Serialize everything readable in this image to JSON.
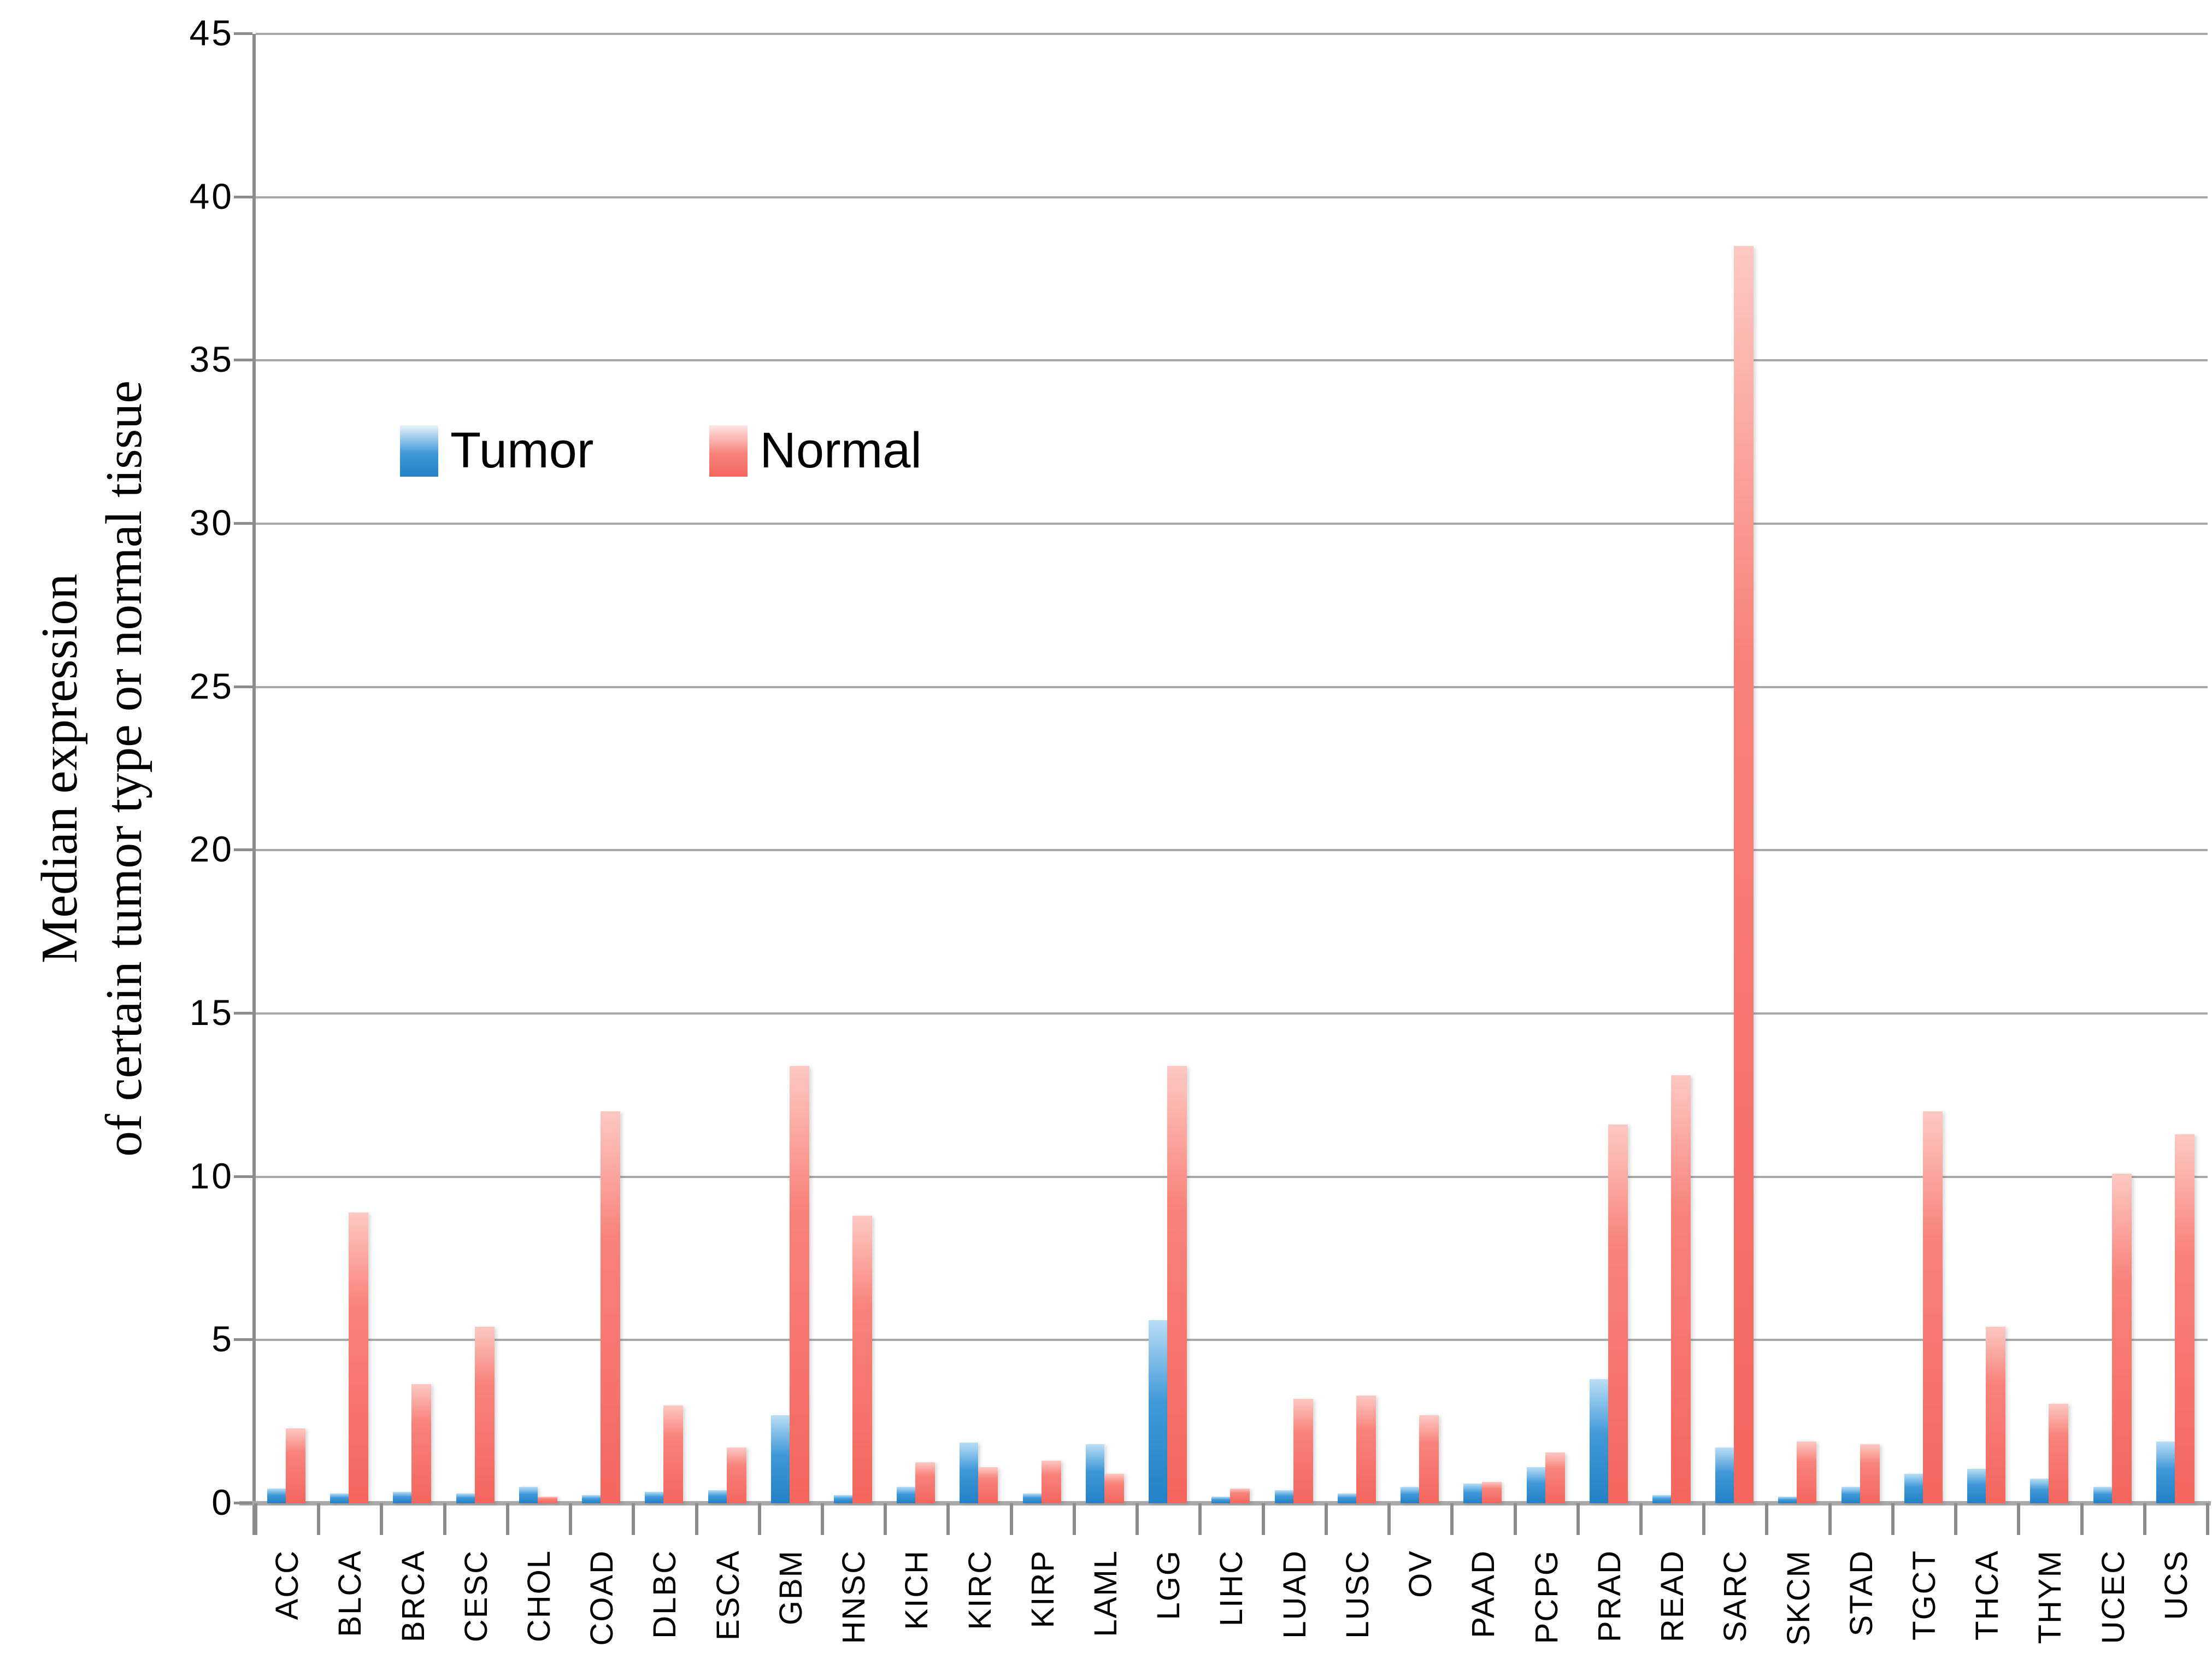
{
  "chart_data": {
    "type": "bar",
    "title": "",
    "ylabel_line1": "Median expression",
    "ylabel_line2": "of certain tumor type or normal tissue",
    "xlabel": "",
    "categories": [
      "ACC",
      "BLCA",
      "BRCA",
      "CESC",
      "CHOL",
      "COAD",
      "DLBC",
      "ESCA",
      "GBM",
      "HNSC",
      "KICH",
      "KIRC",
      "KIRP",
      "LAML",
      "LGG",
      "LIHC",
      "LUAD",
      "LUSC",
      "OV",
      "PAAD",
      "PCPG",
      "PRAD",
      "READ",
      "SARC",
      "SKCM",
      "STAD",
      "TGCT",
      "THCA",
      "THYM",
      "UCEC",
      "UCS"
    ],
    "series": [
      {
        "name": "Tumor",
        "values": [
          0.45,
          0.3,
          0.35,
          0.3,
          0.5,
          0.25,
          0.35,
          0.4,
          2.7,
          0.25,
          0.5,
          1.85,
          0.3,
          1.8,
          5.6,
          0.2,
          0.4,
          0.3,
          0.5,
          0.6,
          1.1,
          3.8,
          0.25,
          1.7,
          0.2,
          0.5,
          0.9,
          1.05,
          0.75,
          0.5,
          1.9
        ]
      },
      {
        "name": "Normal",
        "values": [
          2.3,
          8.9,
          3.65,
          5.4,
          0.2,
          12.0,
          3.0,
          1.7,
          13.4,
          8.8,
          1.25,
          1.1,
          1.3,
          0.9,
          13.4,
          0.45,
          3.2,
          3.3,
          2.7,
          0.65,
          1.55,
          11.6,
          13.1,
          38.5,
          1.9,
          1.8,
          12.0,
          5.4,
          3.05,
          10.1,
          11.3
        ]
      }
    ],
    "ylim": [
      0,
      45
    ],
    "ytick_step": 5,
    "yticks": [
      "0",
      "5",
      "10",
      "15",
      "20",
      "25",
      "30",
      "35",
      "40",
      "45"
    ],
    "grid": true,
    "legend_position": "inside-top-left"
  },
  "colors": {
    "tumor_top": "#b9def5",
    "tumor_mid": "#4098d8",
    "tumor_bottom": "#2381c5",
    "normal_top": "#fdc9c3",
    "normal_mid": "#f8837b",
    "normal_bottom": "#f4665e",
    "gridline": "#a9a9a9",
    "axis": "#8c8c8c",
    "text": "#000000"
  }
}
